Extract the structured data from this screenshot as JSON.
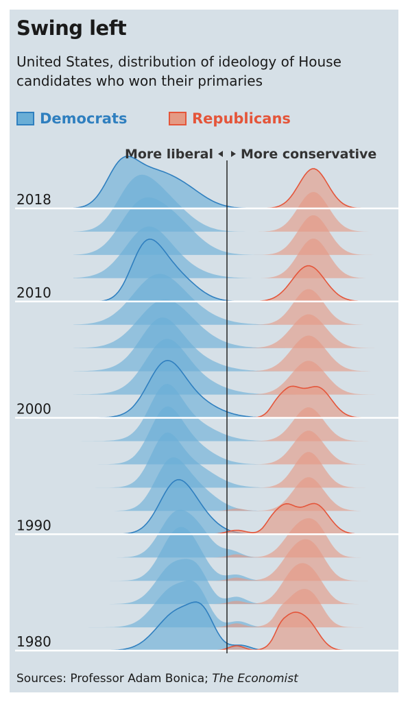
{
  "title": "Swing left",
  "subtitle": "United States, distribution of ideology of House candidates who won their primaries",
  "legend": {
    "democrats": "Democrats",
    "republicans": "Republicans"
  },
  "colors": {
    "panel": "#d6e0e7",
    "dem_fill": "#6aaed6",
    "dem_line": "#2f7fbf",
    "rep_fill": "#e59a84",
    "rep_line": "#e4553a",
    "baseline": "#ffffff",
    "divider": "#222222"
  },
  "source": {
    "prefix": "Sources: Professor Adam Bonica; ",
    "publication": "The Economist"
  },
  "chart_data": {
    "type": "ridgeline",
    "direction_labels": {
      "left": "More liberal",
      "right": "More conservative"
    },
    "year_labels": [
      "2018",
      "2010",
      "2000",
      "1990",
      "1980"
    ],
    "years": [
      1980,
      1982,
      1984,
      1986,
      1988,
      1990,
      1992,
      1994,
      1996,
      1998,
      2000,
      2002,
      2004,
      2006,
      2008,
      2010,
      2012,
      2014,
      2016,
      2018
    ],
    "outlined_years": [
      1980,
      1990,
      2000,
      2010,
      2018
    ],
    "x_range": [
      -1.6,
      1.6
    ],
    "series": [
      {
        "name": "Democrats",
        "peaks": [
          [
            [
              -0.5,
              0.22,
              1.0
            ],
            [
              -0.25,
              0.12,
              0.6
            ],
            [
              0.15,
              0.1,
              0.12
            ]
          ],
          [
            [
              -0.55,
              0.2,
              1.0
            ],
            [
              -0.3,
              0.12,
              0.6
            ],
            [
              0.12,
              0.1,
              0.15
            ]
          ],
          [
            [
              -0.55,
              0.18,
              1.0
            ],
            [
              -0.3,
              0.12,
              0.6
            ],
            [
              0.1,
              0.1,
              0.18
            ]
          ],
          [
            [
              -0.55,
              0.16,
              1.0
            ],
            [
              -0.35,
              0.15,
              0.65
            ],
            [
              0.1,
              0.1,
              0.15
            ]
          ],
          [
            [
              -0.55,
              0.16,
              1.0
            ],
            [
              -0.3,
              0.15,
              0.6
            ],
            [
              0.05,
              0.1,
              0.15
            ]
          ],
          [
            [
              -0.55,
              0.17,
              1.0
            ],
            [
              -0.35,
              0.2,
              0.55
            ]
          ],
          [
            [
              -0.6,
              0.16,
              1.0
            ],
            [
              -0.35,
              0.22,
              0.6
            ]
          ],
          [
            [
              -0.65,
              0.15,
              1.0
            ],
            [
              -0.4,
              0.25,
              0.6
            ]
          ],
          [
            [
              -0.65,
              0.16,
              1.0
            ],
            [
              -0.45,
              0.25,
              0.6
            ]
          ],
          [
            [
              -0.65,
              0.16,
              1.0
            ],
            [
              -0.45,
              0.28,
              0.55
            ]
          ],
          [
            [
              -0.65,
              0.18,
              1.0
            ],
            [
              -0.45,
              0.28,
              0.55
            ]
          ],
          [
            [
              -0.65,
              0.2,
              0.9
            ],
            [
              -0.5,
              0.32,
              0.55
            ]
          ],
          [
            [
              -0.7,
              0.2,
              0.85
            ],
            [
              -0.55,
              0.32,
              0.55
            ]
          ],
          [
            [
              -0.7,
              0.25,
              0.8
            ],
            [
              -0.5,
              0.3,
              0.5
            ]
          ],
          [
            [
              -0.75,
              0.25,
              0.85
            ],
            [
              -0.55,
              0.32,
              0.5
            ]
          ],
          [
            [
              -0.9,
              0.14,
              0.75
            ],
            [
              -0.75,
              0.16,
              0.85
            ],
            [
              -0.5,
              0.2,
              0.55
            ]
          ],
          [
            [
              -0.85,
              0.22,
              0.8
            ],
            [
              -0.7,
              0.3,
              0.55
            ]
          ],
          [
            [
              -0.95,
              0.2,
              0.8
            ],
            [
              -0.7,
              0.25,
              0.7
            ],
            [
              -0.5,
              0.25,
              0.4
            ]
          ],
          [
            [
              -1.0,
              0.18,
              0.8
            ],
            [
              -0.8,
              0.2,
              0.7
            ],
            [
              -0.55,
              0.22,
              0.45
            ]
          ],
          [
            [
              -1.1,
              0.16,
              0.95
            ],
            [
              -0.8,
              0.22,
              0.75
            ],
            [
              -0.45,
              0.22,
              0.45
            ]
          ]
        ]
      },
      {
        "name": "Republicans",
        "peaks": [
          [
            [
              0.65,
              0.12,
              0.75
            ],
            [
              0.85,
              0.12,
              0.6
            ],
            [
              0.1,
              0.08,
              0.12
            ],
            [
              0.55,
              0.05,
              0.12
            ]
          ],
          [
            [
              0.7,
              0.14,
              0.7
            ],
            [
              0.9,
              0.12,
              0.6
            ],
            [
              0.1,
              0.08,
              0.1
            ],
            [
              0.55,
              0.05,
              0.1
            ]
          ],
          [
            [
              0.7,
              0.14,
              0.75
            ],
            [
              0.9,
              0.13,
              0.6
            ],
            [
              0.1,
              0.08,
              0.08
            ]
          ],
          [
            [
              0.72,
              0.15,
              0.75
            ],
            [
              0.92,
              0.13,
              0.6
            ],
            [
              0.1,
              0.08,
              0.08
            ]
          ],
          [
            [
              0.75,
              0.15,
              0.75
            ],
            [
              0.95,
              0.12,
              0.55
            ],
            [
              0.1,
              0.08,
              0.08
            ]
          ],
          [
            [
              0.6,
              0.12,
              0.7
            ],
            [
              0.92,
              0.14,
              0.75
            ],
            [
              0.1,
              0.1,
              0.1
            ],
            [
              0.45,
              0.06,
              0.1
            ]
          ],
          [
            [
              0.85,
              0.16,
              0.85
            ],
            [
              0.1,
              0.08,
              0.06
            ]
          ],
          [
            [
              0.85,
              0.15,
              0.9
            ]
          ],
          [
            [
              0.85,
              0.16,
              0.85
            ]
          ],
          [
            [
              0.85,
              0.16,
              0.85
            ]
          ],
          [
            [
              0.65,
              0.12,
              0.7
            ],
            [
              0.95,
              0.14,
              0.75
            ],
            [
              0.5,
              0.06,
              0.1
            ]
          ],
          [
            [
              0.85,
              0.18,
              0.85
            ]
          ],
          [
            [
              0.85,
              0.18,
              0.9
            ]
          ],
          [
            [
              0.85,
              0.18,
              0.85
            ]
          ],
          [
            [
              0.85,
              0.16,
              0.9
            ]
          ],
          [
            [
              0.85,
              0.17,
              0.9
            ]
          ],
          [
            [
              0.9,
              0.16,
              1.0
            ]
          ],
          [
            [
              0.9,
              0.16,
              1.0
            ]
          ],
          [
            [
              0.9,
              0.16,
              1.0
            ]
          ],
          [
            [
              0.9,
              0.15,
              1.0
            ]
          ]
        ]
      }
    ]
  }
}
